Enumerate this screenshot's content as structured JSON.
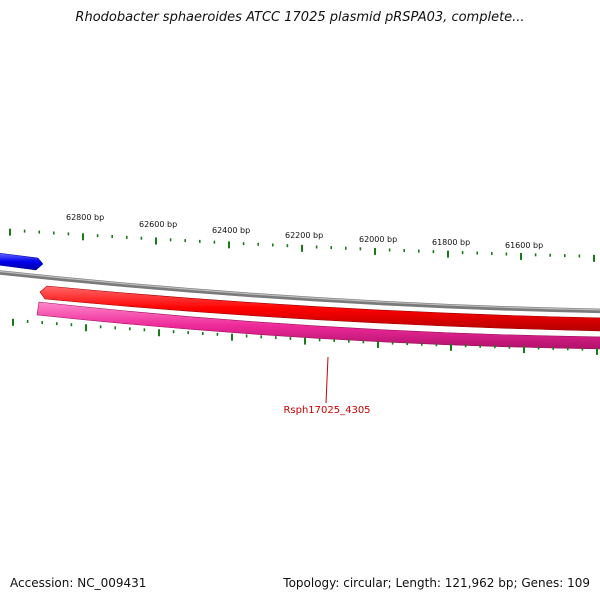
{
  "title": "Rhodobacter sphaeroides ATCC 17025 plasmid pRSPA03, complete...",
  "footer": {
    "accession": "Accession: NC_009431",
    "summary": "Topology: circular; Length: 121,962 bp; Genes: 109"
  },
  "ruler": {
    "labels": [
      "62800 bp",
      "62600 bp",
      "62400 bp",
      "62200 bp",
      "62000 bp",
      "61800 bp",
      "61600 bp"
    ]
  },
  "gene_label": "Rsph17025_4305",
  "colors": {
    "backbone": "#888888",
    "forward_gene": "#0000ee",
    "reverse_gene": "#ee0000",
    "pink_gene": "#ee2a9a",
    "tick": "#1a7a1a",
    "label": "#cc0000"
  }
}
